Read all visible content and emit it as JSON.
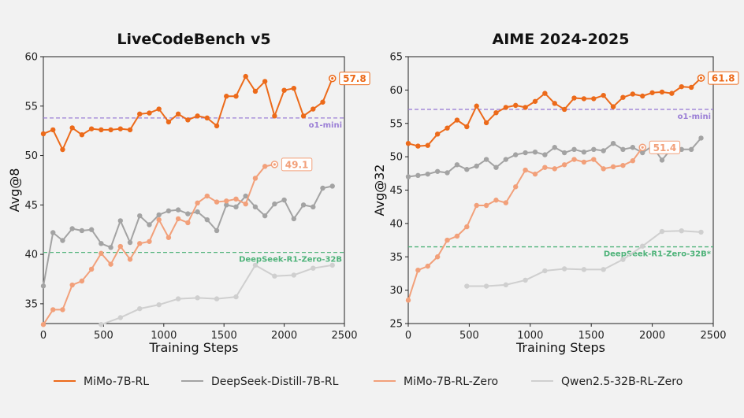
{
  "colors": {
    "mimo_rl": "#ec6a1a",
    "deepseek": "#a3a3a3",
    "mimo_zero": "#f2a07a",
    "qwen": "#cfcfcf",
    "o1_mini": "#9b7fd6",
    "r1_zero": "#4fb37a",
    "background": "#f2f2f2"
  },
  "legend": [
    {
      "key": "mimo_rl",
      "label": "MiMo-7B-RL"
    },
    {
      "key": "deepseek",
      "label": "DeepSeek-Distill-7B-RL"
    },
    {
      "key": "mimo_zero",
      "label": "MiMo-7B-RL-Zero"
    },
    {
      "key": "qwen",
      "label": "Qwen2.5-32B-RL-Zero"
    }
  ],
  "chart_data": [
    {
      "type": "line",
      "title": "LiveCodeBench v5",
      "xlabel": "Training Steps",
      "ylabel": "Avg@8",
      "xlim": [
        0,
        2500
      ],
      "ylim": [
        33,
        60
      ],
      "xticks": [
        0,
        500,
        1000,
        1500,
        2000,
        2500
      ],
      "yticks": [
        35,
        40,
        45,
        50,
        55,
        60
      ],
      "reference_lines": [
        {
          "key": "o1_mini",
          "label": "o1-mini",
          "value": 53.8
        },
        {
          "key": "r1_zero",
          "label": "DeepSeek-R1-Zero-32B",
          "value": 40.2
        }
      ],
      "series": [
        {
          "key": "mimo_rl",
          "name": "MiMo-7B-RL",
          "final_label": "57.8",
          "x": [
            0,
            80,
            160,
            240,
            320,
            400,
            480,
            560,
            640,
            720,
            800,
            880,
            960,
            1040,
            1120,
            1200,
            1280,
            1360,
            1440,
            1520,
            1600,
            1680,
            1760,
            1840,
            1920,
            2000,
            2080,
            2160,
            2240,
            2320,
            2400
          ],
          "y": [
            52.2,
            52.6,
            50.6,
            52.8,
            52.1,
            52.7,
            52.6,
            52.6,
            52.7,
            52.6,
            54.2,
            54.3,
            54.7,
            53.4,
            54.2,
            53.6,
            54.0,
            53.8,
            53.0,
            56.0,
            56.0,
            58.0,
            56.5,
            57.5,
            54.0,
            56.6,
            56.8,
            54.0,
            54.7,
            55.4,
            57.8
          ]
        },
        {
          "key": "deepseek",
          "name": "DeepSeek-Distill-7B-RL",
          "final_label": "",
          "x": [
            0,
            80,
            160,
            240,
            320,
            400,
            480,
            560,
            640,
            720,
            800,
            880,
            960,
            1040,
            1120,
            1200,
            1280,
            1360,
            1440,
            1520,
            1600,
            1680,
            1760,
            1840,
            1920,
            2000,
            2080,
            2160,
            2240,
            2320,
            2400
          ],
          "y": [
            36.8,
            42.2,
            41.4,
            42.6,
            42.4,
            42.5,
            41.1,
            40.7,
            43.4,
            41.2,
            43.9,
            43.0,
            44.0,
            44.4,
            44.5,
            44.1,
            44.3,
            43.5,
            42.4,
            45.0,
            44.8,
            45.9,
            44.8,
            43.9,
            45.1,
            45.5,
            43.6,
            45.0,
            44.8,
            46.7,
            46.9
          ]
        },
        {
          "key": "mimo_zero",
          "name": "MiMo-7B-RL-Zero",
          "final_label": "49.1",
          "x": [
            0,
            80,
            160,
            240,
            320,
            400,
            480,
            560,
            640,
            720,
            800,
            880,
            960,
            1040,
            1120,
            1200,
            1280,
            1360,
            1440,
            1520,
            1600,
            1680,
            1760,
            1840,
            1920
          ],
          "y": [
            32.9,
            34.4,
            34.4,
            36.9,
            37.3,
            38.5,
            40.1,
            39.0,
            40.8,
            39.5,
            41.1,
            41.3,
            43.5,
            41.7,
            43.6,
            43.2,
            45.2,
            45.9,
            45.3,
            45.4,
            45.6,
            45.1,
            47.7,
            48.9,
            49.1
          ]
        },
        {
          "key": "qwen",
          "name": "Qwen2.5-32B-RL-Zero",
          "final_label": "",
          "x": [
            480,
            640,
            800,
            960,
            1120,
            1280,
            1440,
            1600,
            1760,
            1920,
            2080,
            2240,
            2400
          ],
          "y": [
            32.9,
            33.6,
            34.5,
            34.9,
            35.5,
            35.6,
            35.5,
            35.7,
            38.9,
            37.8,
            37.9,
            38.6,
            38.9
          ]
        }
      ]
    },
    {
      "type": "line",
      "title": "AIME 2024-2025",
      "xlabel": "Training Steps",
      "ylabel": "Avg@32",
      "xlim": [
        0,
        2500
      ],
      "ylim": [
        25,
        65
      ],
      "xticks": [
        0,
        500,
        1000,
        1500,
        2000,
        2500
      ],
      "yticks": [
        25,
        30,
        35,
        40,
        45,
        50,
        55,
        60,
        65
      ],
      "reference_lines": [
        {
          "key": "o1_mini",
          "label": "o1-mini",
          "value": 57.1
        },
        {
          "key": "r1_zero",
          "label": "DeepSeek-R1-Zero-32B*",
          "value": 36.5
        }
      ],
      "series": [
        {
          "key": "mimo_rl",
          "name": "MiMo-7B-RL",
          "final_label": "61.8",
          "x": [
            0,
            80,
            160,
            240,
            320,
            400,
            480,
            560,
            640,
            720,
            800,
            880,
            960,
            1040,
            1120,
            1200,
            1280,
            1360,
            1440,
            1520,
            1600,
            1680,
            1760,
            1840,
            1920,
            2000,
            2080,
            2160,
            2240,
            2320,
            2400
          ],
          "y": [
            52.0,
            51.6,
            51.7,
            53.4,
            54.3,
            55.5,
            54.5,
            57.6,
            55.1,
            56.6,
            57.4,
            57.7,
            57.4,
            58.3,
            59.5,
            58.0,
            57.1,
            58.8,
            58.7,
            58.7,
            59.2,
            57.5,
            58.9,
            59.4,
            59.1,
            59.6,
            59.7,
            59.5,
            60.5,
            60.4,
            61.8
          ]
        },
        {
          "key": "deepseek",
          "name": "DeepSeek-Distill-7B-RL",
          "final_label": "",
          "x": [
            0,
            80,
            160,
            240,
            320,
            400,
            480,
            560,
            640,
            720,
            800,
            880,
            960,
            1040,
            1120,
            1200,
            1280,
            1360,
            1440,
            1520,
            1600,
            1680,
            1760,
            1840,
            1920,
            2000,
            2080,
            2160,
            2240,
            2320,
            2400
          ],
          "y": [
            47.0,
            47.2,
            47.4,
            47.8,
            47.6,
            48.8,
            48.1,
            48.6,
            49.6,
            48.4,
            49.6,
            50.3,
            50.6,
            50.7,
            50.3,
            51.4,
            50.6,
            51.1,
            50.7,
            51.1,
            50.9,
            52.0,
            51.1,
            51.4,
            50.6,
            51.6,
            49.5,
            51.3,
            51.1,
            51.1,
            52.8
          ]
        },
        {
          "key": "mimo_zero",
          "name": "MiMo-7B-RL-Zero",
          "final_label": "51.4",
          "x": [
            0,
            80,
            160,
            240,
            320,
            400,
            480,
            560,
            640,
            720,
            800,
            880,
            960,
            1040,
            1120,
            1200,
            1280,
            1360,
            1440,
            1520,
            1600,
            1680,
            1760,
            1840,
            1920
          ],
          "y": [
            28.5,
            33.0,
            33.6,
            35.0,
            37.5,
            38.1,
            39.5,
            42.7,
            42.7,
            43.5,
            43.1,
            45.5,
            48.0,
            47.4,
            48.4,
            48.2,
            48.8,
            49.6,
            49.2,
            49.6,
            48.2,
            48.5,
            48.7,
            49.4,
            51.4
          ]
        },
        {
          "key": "qwen",
          "name": "Qwen2.5-32B-RL-Zero",
          "final_label": "",
          "x": [
            480,
            640,
            800,
            960,
            1120,
            1280,
            1440,
            1600,
            1760,
            1920,
            2080,
            2240,
            2400
          ],
          "y": [
            30.6,
            30.6,
            30.8,
            31.5,
            32.9,
            33.2,
            33.1,
            33.1,
            34.6,
            36.6,
            38.8,
            38.9,
            38.7
          ]
        }
      ]
    }
  ]
}
